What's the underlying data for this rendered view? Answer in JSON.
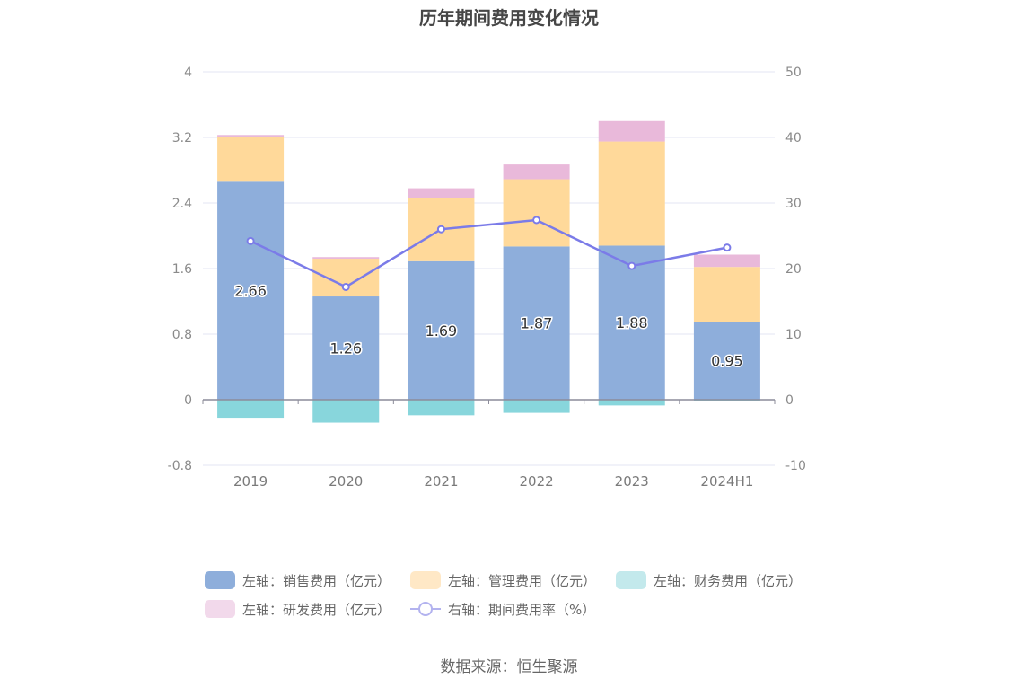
{
  "source": "数据来源：恒生聚源",
  "chart_data": {
    "type": "bar",
    "title": "历年期间费用变化情况",
    "categories": [
      "2019",
      "2020",
      "2021",
      "2022",
      "2023",
      "2024H1"
    ],
    "y_left": {
      "ticks": [
        "-0.8",
        "0",
        "0.8",
        "1.6",
        "2.4",
        "3.2",
        "4"
      ],
      "ylim": [
        -0.8,
        4
      ]
    },
    "y_right": {
      "ticks": [
        "-10",
        "0",
        "10",
        "20",
        "30",
        "40",
        "50"
      ],
      "ylim": [
        -10,
        50
      ]
    },
    "grid": true,
    "legend_position": "bottom",
    "series": [
      {
        "name": "左轴：销售费用（亿元）",
        "axis": "left",
        "kind": "bar",
        "color": "#8eaedb",
        "values": [
          2.66,
          1.26,
          1.69,
          1.87,
          1.88,
          0.95
        ],
        "labels": [
          "2.66",
          "1.26",
          "1.69",
          "1.87",
          "1.88",
          "0.95"
        ]
      },
      {
        "name": "左轴：管理费用（亿元）",
        "axis": "left",
        "kind": "bar",
        "color": "#ffd99a",
        "values": [
          0.55,
          0.46,
          0.77,
          0.82,
          1.27,
          0.67
        ]
      },
      {
        "name": "左轴：财务费用（亿元）",
        "axis": "left",
        "kind": "bar",
        "color": "#88d6dc",
        "values": [
          -0.22,
          -0.28,
          -0.19,
          -0.16,
          -0.07,
          -0.01
        ]
      },
      {
        "name": "左轴：研发费用（亿元）",
        "axis": "left",
        "kind": "bar",
        "color": "#e9b9da",
        "values": [
          0.02,
          0.02,
          0.12,
          0.18,
          0.25,
          0.15
        ]
      },
      {
        "name": "右轴：期间费用率（%）",
        "axis": "right",
        "kind": "line",
        "color": "#7b7be8",
        "values": [
          24.2,
          17.2,
          26.0,
          27.4,
          20.4,
          23.2
        ]
      }
    ]
  }
}
